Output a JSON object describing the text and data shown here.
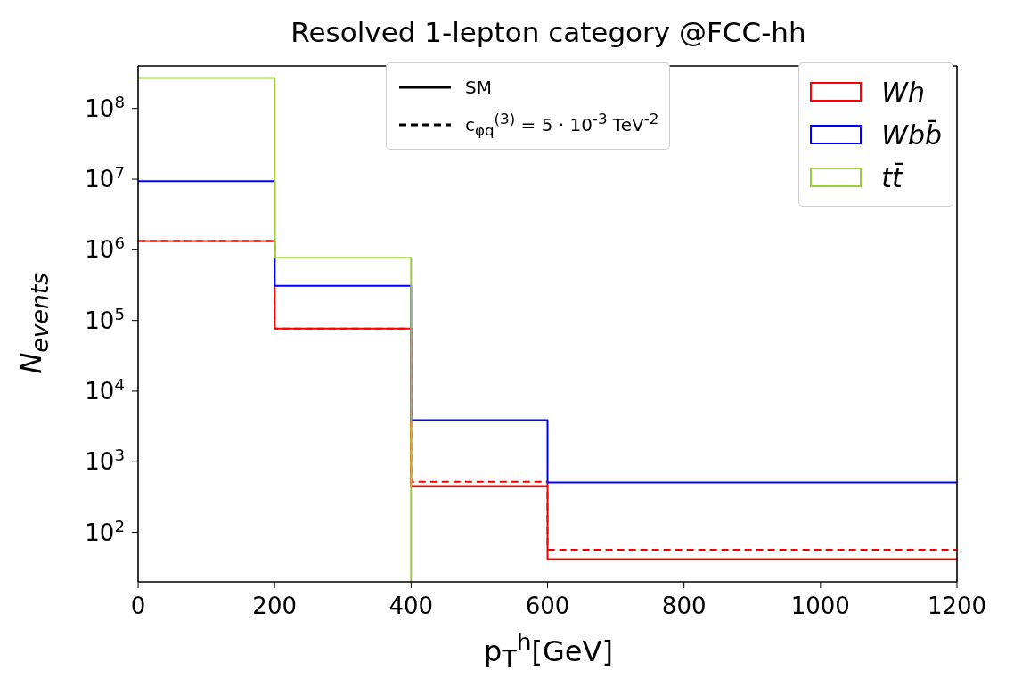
{
  "chart_data": {
    "type": "histogram",
    "title": "Resolved 1-lepton category @FCC-hh",
    "xlabel": "p$_{T}$$^{h}$[GeV]",
    "ylabel": "N$_{events}$",
    "bins": [
      0,
      200,
      400,
      600,
      1200
    ],
    "series": [
      {
        "color": "#f00000",
        "values": [
          1330000,
          77000,
          520,
          57
        ],
        "line_style": "dashed"
      },
      {
        "name": "Wh",
        "color": "#ff0000",
        "values": [
          1330000,
          77000,
          455,
          42
        ],
        "line_style": "solid"
      },
      {
        "name": "Wbb̄",
        "color": "#0000ff",
        "values": [
          9400000,
          310000,
          3900,
          510
        ],
        "line_style": "solid"
      },
      {
        "name": "tt̄",
        "color": "#9acd32",
        "bins": [
          0,
          200,
          400
        ],
        "values": [
          270000000,
          770000
        ],
        "line_style": "solid"
      }
    ],
    "xlim": [
      0,
      1200
    ],
    "xticks": [
      0,
      200,
      400,
      600,
      800,
      1000,
      1200
    ],
    "ylim": [
      20,
      400000000
    ],
    "yticks": [
      {
        "value": 100,
        "label": "10$^{2}$"
      },
      {
        "value": 1000,
        "label": "10$^{3}$"
      },
      {
        "value": 10000,
        "label": "10$^{4}$"
      },
      {
        "value": 100000,
        "label": "10$^{5}$"
      },
      {
        "value": 1000000,
        "label": "10$^{6}$"
      },
      {
        "value": 10000000,
        "label": "10$^{7}$"
      },
      {
        "value": 100000000,
        "label": "10$^{8}$"
      }
    ],
    "log": true,
    "grid": false,
    "legend": "top right",
    "annotations": [
      "SM",
      "c$_{φq}$$^{(3)}$ = 5 · 10$^{-3}$ TeV$^{-2}$"
    ]
  }
}
